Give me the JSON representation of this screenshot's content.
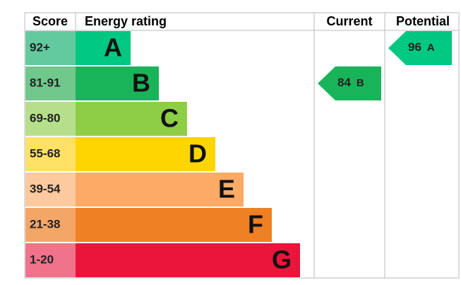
{
  "header": {
    "score": "Score",
    "energy_rating": "Energy rating",
    "current": "Current",
    "potential": "Potential"
  },
  "bands": [
    {
      "score": "92+",
      "letter": "A",
      "color": "#00c781",
      "score_color": "#63c99e"
    },
    {
      "score": "81-91",
      "letter": "B",
      "color": "#19b459",
      "score_color": "#70c88c"
    },
    {
      "score": "69-80",
      "letter": "C",
      "color": "#8dce46",
      "score_color": "#b6df8c"
    },
    {
      "score": "55-68",
      "letter": "D",
      "color": "#ffd500",
      "score_color": "#ffe166"
    },
    {
      "score": "39-54",
      "letter": "E",
      "color": "#fcaa65",
      "score_color": "#fdc99e"
    },
    {
      "score": "21-38",
      "letter": "F",
      "color": "#ef8023",
      "score_color": "#f4a667"
    },
    {
      "score": "1-20",
      "letter": "G",
      "color": "#e9153b",
      "score_color": "#f0738b"
    }
  ],
  "current": {
    "value": 84,
    "letter": "B"
  },
  "potential": {
    "value": 96,
    "letter": "A"
  }
}
